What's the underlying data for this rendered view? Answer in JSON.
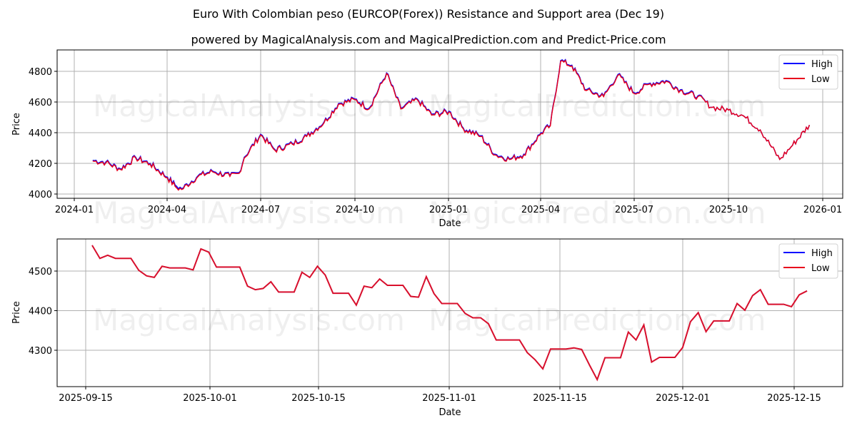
{
  "title": "Euro With Colombian peso (EURCOP(Forex)) Resistance and Support area (Dec 19)",
  "subtitle": "powered by MagicalAnalysis.com and MagicalPrediction.com and Predict-Price.com",
  "watermarks": [
    "MagicalAnalysis.com",
    "MagicalPrediction.com"
  ],
  "colors": {
    "high": "#0000ff",
    "low": "#e8001c",
    "grid": "#b0b0b0"
  },
  "chart_data": [
    {
      "type": "line",
      "title": "",
      "xlabel": "Date",
      "ylabel": "Price",
      "x_ticks": [
        "2024-01",
        "2024-04",
        "2024-07",
        "2024-10",
        "2025-01",
        "2025-04",
        "2025-07",
        "2025-10",
        "2026-01"
      ],
      "y_ticks": [
        4000,
        4200,
        4400,
        4600,
        4800
      ],
      "ylim": [
        3985,
        4930
      ],
      "grid": true,
      "legend": {
        "position": "upper right",
        "entries": [
          "High",
          "Low"
        ]
      },
      "x": [
        "2024-01-19",
        "2024-02-01",
        "2024-02-15",
        "2024-03-01",
        "2024-03-15",
        "2024-04-01",
        "2024-04-10",
        "2024-04-15",
        "2024-05-01",
        "2024-05-15",
        "2024-06-01",
        "2024-06-10",
        "2024-06-15",
        "2024-07-01",
        "2024-07-15",
        "2024-08-01",
        "2024-08-15",
        "2024-09-01",
        "2024-09-15",
        "2024-10-01",
        "2024-10-15",
        "2024-11-01",
        "2024-11-15",
        "2024-12-01",
        "2024-12-15",
        "2025-01-01",
        "2025-01-15",
        "2025-02-01",
        "2025-02-15",
        "2025-03-01",
        "2025-03-15",
        "2025-04-01",
        "2025-04-10",
        "2025-04-20",
        "2025-05-01",
        "2025-05-15",
        "2025-06-01",
        "2025-06-15",
        "2025-07-01",
        "2025-07-15",
        "2025-08-01",
        "2025-08-15",
        "2025-09-01",
        "2025-09-15",
        "2025-10-01",
        "2025-10-15",
        "2025-11-01",
        "2025-11-20",
        "2025-12-01",
        "2025-12-19"
      ],
      "series": [
        {
          "name": "High",
          "values": [
            4220,
            4210,
            4165,
            4240,
            4200,
            4110,
            4050,
            4035,
            4120,
            4150,
            4120,
            4140,
            4240,
            4390,
            4290,
            4330,
            4380,
            4470,
            4590,
            4620,
            4560,
            4790,
            4560,
            4620,
            4520,
            4540,
            4430,
            4380,
            4260,
            4230,
            4260,
            4400,
            4450,
            4870,
            4840,
            4680,
            4640,
            4780,
            4660,
            4720,
            4740,
            4680,
            4640,
            4565,
            4548,
            4512,
            4418,
            4226,
            4307,
            4450
          ]
        },
        {
          "name": "Low",
          "values": [
            4215,
            4205,
            4160,
            4235,
            4195,
            4105,
            4040,
            4030,
            4115,
            4145,
            4115,
            4135,
            4235,
            4385,
            4285,
            4325,
            4375,
            4465,
            4585,
            4615,
            4555,
            4785,
            4555,
            4615,
            4515,
            4535,
            4425,
            4375,
            4255,
            4225,
            4255,
            4395,
            4445,
            4865,
            4835,
            4675,
            4635,
            4775,
            4655,
            4715,
            4735,
            4675,
            4635,
            4565,
            4548,
            4512,
            4418,
            4226,
            4307,
            4450
          ]
        }
      ]
    },
    {
      "type": "line",
      "title": "",
      "xlabel": "Date",
      "ylabel": "Price",
      "x_ticks": [
        "2025-09-15",
        "2025-10-01",
        "2025-10-15",
        "2025-11-01",
        "2025-11-15",
        "2025-12-01",
        "2025-12-15"
      ],
      "y_ticks": [
        4300,
        4400,
        4500
      ],
      "ylim": [
        4210,
        4580
      ],
      "grid": true,
      "legend": {
        "position": "upper right",
        "entries": [
          "High",
          "Low"
        ]
      },
      "x_start": "2025-09-16",
      "series": [
        {
          "name": "High",
          "values": [
            4565,
            4532,
            4540,
            4532,
            4532,
            4532,
            4502,
            4488,
            4484,
            4512,
            4508,
            4508,
            4508,
            4503,
            4556,
            4548,
            4510,
            4510,
            4510,
            4510,
            4462,
            4453,
            4456,
            4473,
            4447,
            4447,
            4447,
            4497,
            4484,
            4512,
            4490,
            4444,
            4444,
            4444,
            4414,
            4462,
            4458,
            4480,
            4464,
            4464,
            4464,
            4436,
            4434,
            4486,
            4443,
            4418,
            4418,
            4418,
            4393,
            4382,
            4382,
            4367,
            4326,
            4326,
            4326,
            4326,
            4294,
            4276,
            4253,
            4303,
            4303,
            4303,
            4306,
            4302,
            4263,
            4226,
            4281,
            4281,
            4281,
            4346,
            4326,
            4364,
            4270,
            4282,
            4282,
            4282,
            4307,
            4372,
            4395,
            4347,
            4374,
            4374,
            4374,
            4418,
            4401,
            4438,
            4453,
            4416,
            4416,
            4416,
            4410,
            4440,
            4450
          ]
        },
        {
          "name": "Low",
          "values": [
            4565,
            4532,
            4540,
            4532,
            4532,
            4532,
            4502,
            4488,
            4484,
            4512,
            4508,
            4508,
            4508,
            4503,
            4556,
            4548,
            4510,
            4510,
            4510,
            4510,
            4462,
            4453,
            4456,
            4473,
            4447,
            4447,
            4447,
            4497,
            4484,
            4512,
            4490,
            4444,
            4444,
            4444,
            4414,
            4462,
            4458,
            4480,
            4464,
            4464,
            4464,
            4436,
            4434,
            4486,
            4443,
            4418,
            4418,
            4418,
            4393,
            4382,
            4382,
            4367,
            4326,
            4326,
            4326,
            4326,
            4294,
            4276,
            4253,
            4303,
            4303,
            4303,
            4306,
            4302,
            4263,
            4226,
            4281,
            4281,
            4281,
            4346,
            4326,
            4364,
            4270,
            4282,
            4282,
            4282,
            4307,
            4372,
            4395,
            4347,
            4374,
            4374,
            4374,
            4418,
            4401,
            4438,
            4453,
            4416,
            4416,
            4416,
            4410,
            4440,
            4450
          ]
        }
      ]
    }
  ]
}
